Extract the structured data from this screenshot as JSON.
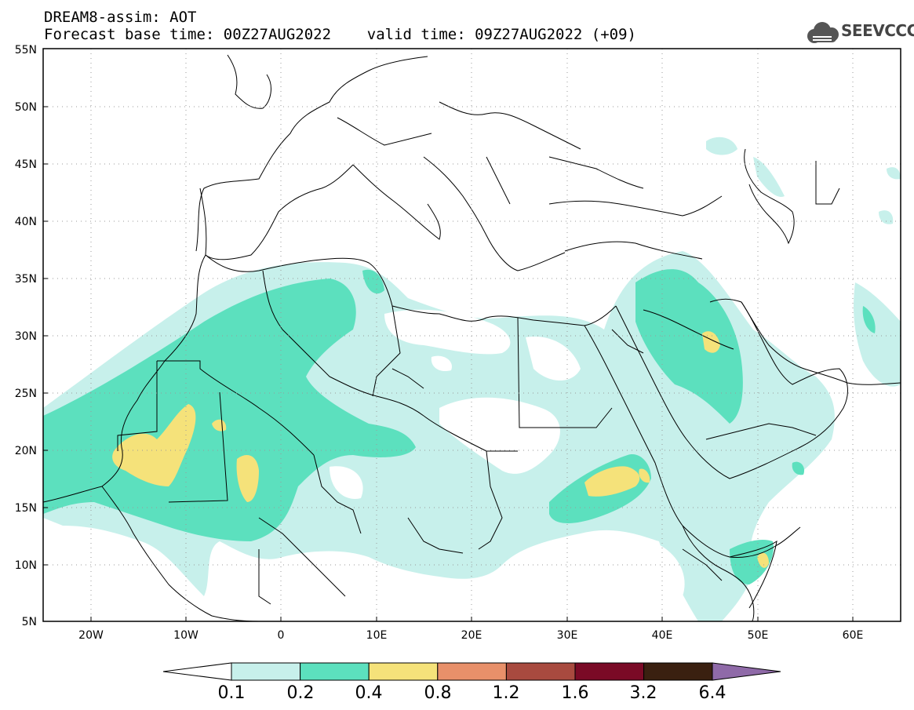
{
  "header": {
    "title_line1": "DREAM8-assim: AOT",
    "title_line2": "Forecast base time: 00Z27AUG2022    valid time: 09Z27AUG2022 (+09)"
  },
  "logo": {
    "text": "SEEVCCC",
    "icon": "cloud-icon"
  },
  "map": {
    "projection": "lat-lon",
    "lon_range": [
      -25,
      65
    ],
    "lat_range": [
      5,
      55
    ],
    "grid": "dotted",
    "lat_labels": [
      "55N",
      "50N",
      "45N",
      "40N",
      "35N",
      "30N",
      "25N",
      "20N",
      "15N",
      "10N",
      "5N"
    ],
    "lon_labels": [
      "20W",
      "10W",
      "0",
      "10E",
      "20E",
      "30E",
      "40E",
      "50E",
      "60E"
    ]
  },
  "colorbar": {
    "levels": [
      "0.1",
      "0.2",
      "0.4",
      "0.8",
      "1.2",
      "1.6",
      "3.2",
      "6.4"
    ],
    "colors": [
      "#c7f0eb",
      "#5ce0be",
      "#f5e27a",
      "#e8906a",
      "#a84a3f",
      "#7a0a26",
      "#3a2010"
    ],
    "under_color": "#ffffff",
    "over_color": "#8f6aa8"
  },
  "palette": {
    "level1": "#c7f0eb",
    "level2": "#5ce0be",
    "level3": "#f5e27a"
  }
}
